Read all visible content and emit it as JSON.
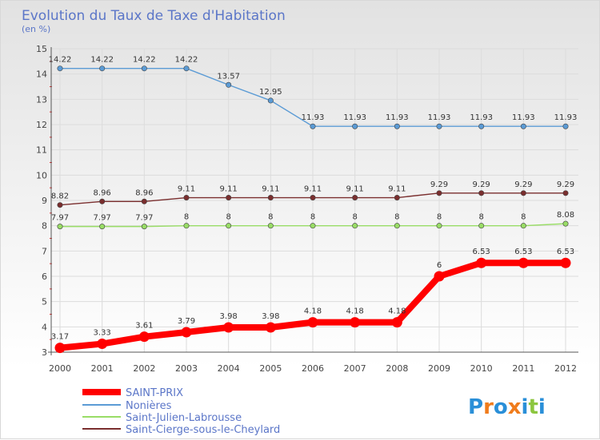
{
  "chart_data": {
    "type": "line",
    "title": "Evolution du Taux de Taxe d'Habitation",
    "subtitle": "(en %)",
    "x": [
      "2000",
      "2001",
      "2002",
      "2003",
      "2004",
      "2005",
      "2006",
      "2007",
      "2008",
      "2009",
      "2010",
      "2011",
      "2012"
    ],
    "ylim": [
      3,
      15
    ],
    "yticks": [
      "3",
      "4",
      "5",
      "6",
      "7",
      "8",
      "9",
      "10",
      "11",
      "12",
      "13",
      "14",
      "15"
    ],
    "grid": true,
    "legend_position": "bottom-left",
    "series": [
      {
        "name": "SAINT-PRIX",
        "color": "#ff0000",
        "emphasis": true,
        "values": [
          3.17,
          3.33,
          3.61,
          3.79,
          3.98,
          3.98,
          4.18,
          4.18,
          4.18,
          6,
          6.53,
          6.53,
          6.53
        ],
        "labels": [
          "3.17",
          "3.33",
          "3.61",
          "3.79",
          "3.98",
          "3.98",
          "4.18",
          "4.18",
          "4.18",
          "6",
          "6.53",
          "6.53",
          "6.53"
        ]
      },
      {
        "name": "Nonières",
        "color": "#5b9bd5",
        "values": [
          14.22,
          14.22,
          14.22,
          14.22,
          13.57,
          12.95,
          11.93,
          11.93,
          11.93,
          11.93,
          11.93,
          11.93,
          11.93
        ],
        "labels": [
          "14.22",
          "14.22",
          "14.22",
          "14.22",
          "13.57",
          "12.95",
          "11.93",
          "11.93",
          "11.93",
          "11.93",
          "11.93",
          "11.93",
          "11.93"
        ]
      },
      {
        "name": "Saint-Julien-Labrousse",
        "color": "#99dd66",
        "values": [
          7.97,
          7.97,
          7.97,
          8,
          8,
          8,
          8,
          8,
          8,
          8,
          8,
          8,
          8.08
        ],
        "labels": [
          "7.97",
          "7.97",
          "7.97",
          "8",
          "8",
          "8",
          "8",
          "8",
          "8",
          "8",
          "8",
          "8",
          "8.08"
        ]
      },
      {
        "name": "Saint-Cierge-sous-le-Cheylard",
        "color": "#7a2e2e",
        "values": [
          8.82,
          8.96,
          8.96,
          9.11,
          9.11,
          9.11,
          9.11,
          9.11,
          9.11,
          9.29,
          9.29,
          9.29,
          9.29
        ],
        "labels": [
          "8.82",
          "8.96",
          "8.96",
          "9.11",
          "9.11",
          "9.11",
          "9.11",
          "9.11",
          "9.11",
          "9.29",
          "9.29",
          "9.29",
          "9.29"
        ]
      }
    ]
  },
  "brand": {
    "logo_text": "Proxiti",
    "letter_colors": [
      "#2a8fd8",
      "#f07c1c",
      "#2a8fd8",
      "#f07c1c",
      "#2a8fd8",
      "#8cc63f",
      "#2a8fd8"
    ]
  }
}
